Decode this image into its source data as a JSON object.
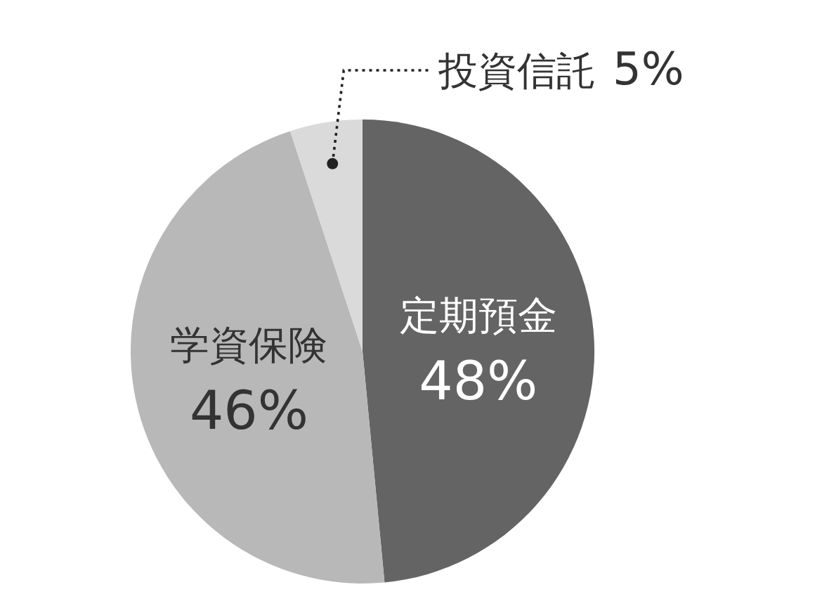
{
  "chart_data": {
    "type": "pie",
    "categories": [
      "定期預金",
      "学資保険",
      "投資信託"
    ],
    "values": [
      48,
      46,
      5
    ],
    "value_labels": [
      "48%",
      "46%",
      "5%"
    ],
    "colors": [
      "#646464",
      "#b8b8b8",
      "#dadada"
    ]
  }
}
